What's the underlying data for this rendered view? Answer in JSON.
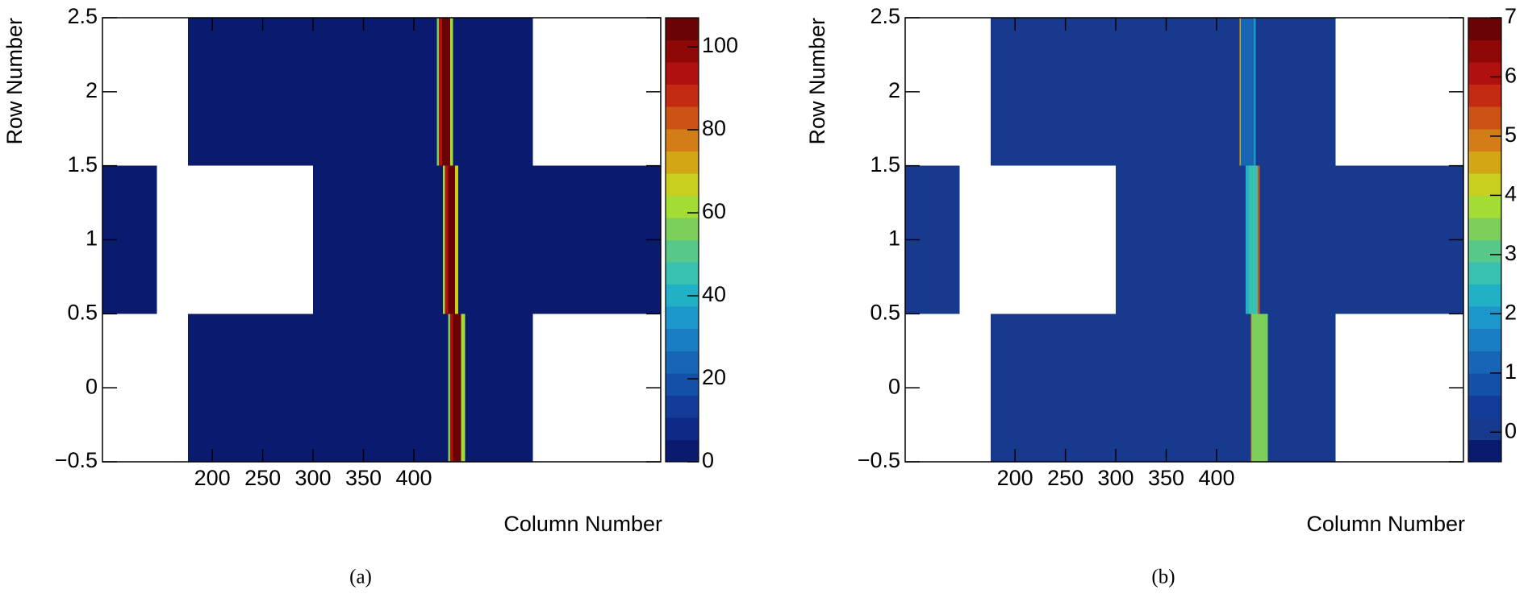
{
  "chart_data": [
    {
      "type": "heatmap",
      "x_label": "Column Number",
      "y_label": "Row Number",
      "caption": "(a)",
      "xlim": [
        91,
        645
      ],
      "xticks": [
        200,
        250,
        300,
        350,
        400
      ],
      "ylim": [
        -0.5,
        2.5
      ],
      "yticks": [
        {
          "value": -0.5,
          "label": "−0.5"
        },
        0,
        0.5,
        1,
        1.5,
        2,
        2.5
      ],
      "zlim": [
        0,
        107
      ],
      "zticks": [
        0,
        20,
        40,
        60,
        80,
        100
      ],
      "colors": [
        "#0a1a6e",
        "#0e2a86",
        "#123c98",
        "#1450a8",
        "#1766b6",
        "#1a7ec4",
        "#1c97cb",
        "#22b0c6",
        "#38c1b0",
        "#58c888",
        "#7ccf5a",
        "#a4dc36",
        "#c8cf1e",
        "#d4a616",
        "#d47c18",
        "#cd5216",
        "#c42a12",
        "#b01010",
        "#8e0808",
        "#6a0404"
      ],
      "cells": [
        {
          "row": 2,
          "x": [
            176,
            423
          ],
          "value": 1
        },
        {
          "row": 2,
          "x": [
            423,
            425
          ],
          "value": 55
        },
        {
          "row": 2,
          "x": [
            425,
            428
          ],
          "value": 92
        },
        {
          "row": 2,
          "x": [
            428,
            436
          ],
          "value": 105
        },
        {
          "row": 2,
          "x": [
            436,
            439
          ],
          "value": 60
        },
        {
          "row": 2,
          "x": [
            439,
            518
          ],
          "value": 1
        },
        {
          "row": 1,
          "x": [
            91,
            145
          ],
          "value": 1
        },
        {
          "row": 1,
          "x": [
            300,
            429
          ],
          "value": 1
        },
        {
          "row": 1,
          "x": [
            429,
            431
          ],
          "value": 60
        },
        {
          "row": 1,
          "x": [
            431,
            434
          ],
          "value": 95
        },
        {
          "row": 1,
          "x": [
            434,
            441
          ],
          "value": 105
        },
        {
          "row": 1,
          "x": [
            441,
            444
          ],
          "value": 65
        },
        {
          "row": 1,
          "x": [
            444,
            645
          ],
          "value": 1
        },
        {
          "row": 0,
          "x": [
            176,
            434
          ],
          "value": 1
        },
        {
          "row": 0,
          "x": [
            434,
            436
          ],
          "value": 55
        },
        {
          "row": 0,
          "x": [
            436,
            439
          ],
          "value": 92
        },
        {
          "row": 0,
          "x": [
            439,
            447
          ],
          "value": 105
        },
        {
          "row": 0,
          "x": [
            447,
            451
          ],
          "value": 60
        },
        {
          "row": 0,
          "x": [
            451,
            518
          ],
          "value": 1
        }
      ]
    },
    {
      "type": "heatmap",
      "x_label": "Column Number",
      "y_label": "Row Number",
      "caption": "(b)",
      "xlim": [
        91,
        645
      ],
      "xticks": [
        200,
        250,
        300,
        350,
        400
      ],
      "ylim": [
        -0.5,
        2.5
      ],
      "yticks": [
        {
          "value": -0.5,
          "label": "−0.5"
        },
        0,
        0.5,
        1,
        1.5,
        2,
        2.5
      ],
      "zlim": [
        -0.5,
        7
      ],
      "zticks": [
        0,
        1,
        2,
        3,
        4,
        5,
        6,
        7
      ],
      "colors": [
        "#0a1a6e",
        "#173a8e",
        "#123c98",
        "#1450a8",
        "#1766b6",
        "#1a7ec4",
        "#1c97cb",
        "#22b0c6",
        "#38c1b0",
        "#58c888",
        "#7ccf5a",
        "#a4dc36",
        "#c8cf1e",
        "#d4a616",
        "#d47c18",
        "#cd5216",
        "#c42a12",
        "#b01010",
        "#8e0808",
        "#6a0404"
      ],
      "cells": [
        {
          "row": 2,
          "x": [
            176,
            423
          ],
          "value": 0
        },
        {
          "row": 2,
          "x": [
            423,
            424
          ],
          "value": 4.5
        },
        {
          "row": 2,
          "x": [
            424,
            437
          ],
          "value": 1.2
        },
        {
          "row": 2,
          "x": [
            437,
            439
          ],
          "value": 2
        },
        {
          "row": 2,
          "x": [
            439,
            518
          ],
          "value": 0
        },
        {
          "row": 1,
          "x": [
            91,
            145
          ],
          "value": 0
        },
        {
          "row": 1,
          "x": [
            300,
            429
          ],
          "value": 0
        },
        {
          "row": 1,
          "x": [
            429,
            432
          ],
          "value": 2.4
        },
        {
          "row": 1,
          "x": [
            432,
            441
          ],
          "value": 2.8
        },
        {
          "row": 1,
          "x": [
            441,
            443
          ],
          "value": 5.2
        },
        {
          "row": 1,
          "x": [
            443,
            645
          ],
          "value": 0
        },
        {
          "row": 0,
          "x": [
            176,
            434
          ],
          "value": 0
        },
        {
          "row": 0,
          "x": [
            434,
            435
          ],
          "value": 5
        },
        {
          "row": 0,
          "x": [
            435,
            451
          ],
          "value": 3.3
        },
        {
          "row": 0,
          "x": [
            451,
            518
          ],
          "value": 0
        }
      ]
    }
  ]
}
